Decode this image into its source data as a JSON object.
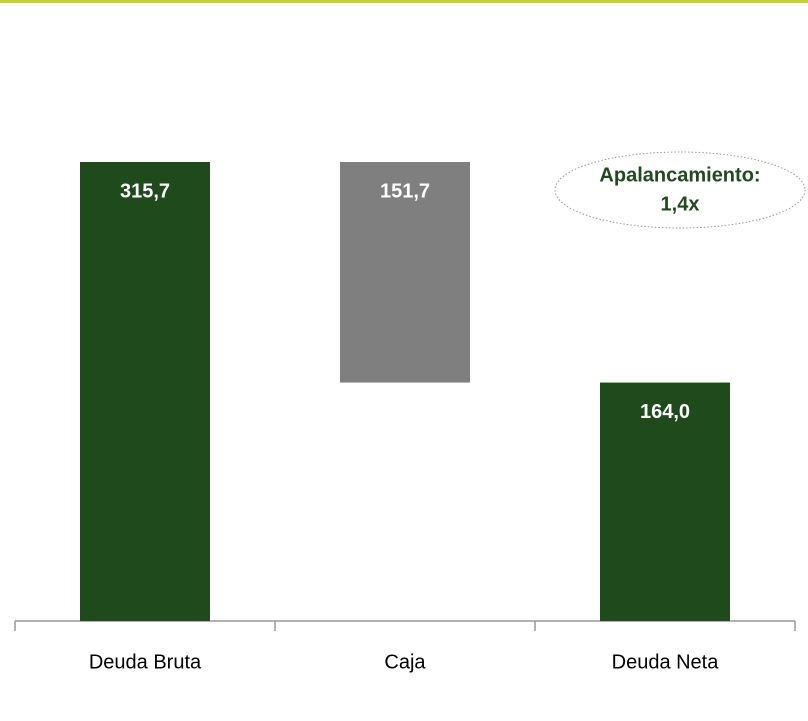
{
  "chart_data": {
    "type": "waterfall",
    "categories": [
      "Deuda Bruta",
      "Caja",
      "Deuda Neta"
    ],
    "values": [
      315.7,
      151.7,
      164.0
    ],
    "value_labels": [
      "315,7",
      "151,7",
      "164,0"
    ],
    "measures": [
      "absolute",
      "decrease",
      "total"
    ],
    "colors": [
      "#1f4a1c",
      "#7f7f7f",
      "#1f4a1c"
    ],
    "annotation": [
      "Apalancamiento:",
      "1,4x"
    ]
  }
}
